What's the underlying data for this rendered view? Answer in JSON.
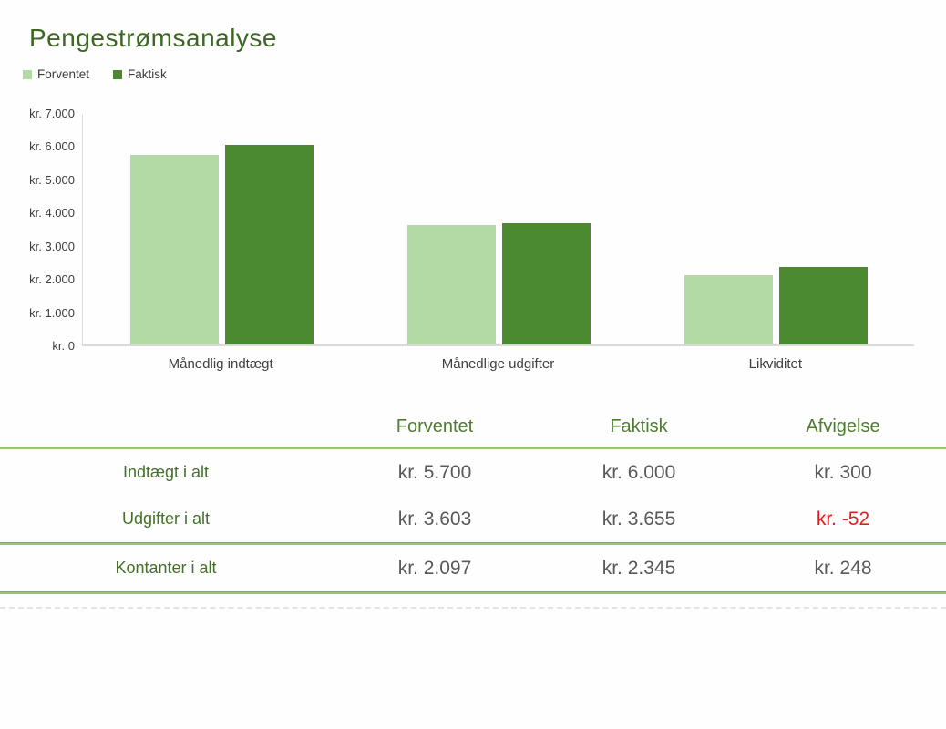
{
  "title": "Pengestrømsanalyse",
  "colors": {
    "forventet_light_green": "#b3d9a5",
    "faktisk_dark_green": "#4c8a32",
    "title_green": "#3e6626",
    "header_green": "#4e7d31",
    "row_label_green": "#44702a",
    "value_gray": "#595959",
    "negative_red": "#e81c1c",
    "divider_green": "#9cc27c",
    "axis_gray": "#d9d9d9"
  },
  "chart_data": {
    "type": "bar",
    "title": "Pengestrømsanalyse",
    "categories": [
      "Månedlig indtægt",
      "Månedlige udgifter",
      "Likviditet"
    ],
    "series": [
      {
        "name": "Forventet",
        "color": "#b3d9a5",
        "values": [
          5700,
          3603,
          2097
        ]
      },
      {
        "name": "Faktisk",
        "color": "#4c8a32",
        "values": [
          6000,
          3655,
          2345
        ]
      }
    ],
    "xlabel": "",
    "ylabel": "",
    "ylim": [
      0,
      7000
    ],
    "ytick_step": 1000,
    "ytick_labels": [
      "kr. 7.000",
      "kr. 6.000",
      "kr. 5.000",
      "kr. 4.000",
      "kr. 3.000",
      "kr. 2.000",
      "kr. 1.000",
      "kr. 0"
    ],
    "legend_position": "top-left",
    "grid": false
  },
  "table": {
    "headers": [
      "Forventet",
      "Faktisk",
      "Afvigelse"
    ],
    "rows": [
      {
        "label": "Indtægt i alt",
        "forventet": "kr. 5.700",
        "faktisk": "kr. 6.000",
        "afvigelse": "kr. 300",
        "afvigelse_color": "#595959"
      },
      {
        "label": "Udgifter i alt",
        "forventet": "kr. 3.603",
        "faktisk": "kr. 3.655",
        "afvigelse": "kr. -52",
        "afvigelse_color": "#e81c1c"
      },
      {
        "label": "Kontanter i alt",
        "forventet": "kr. 2.097",
        "faktisk": "kr. 2.345",
        "afvigelse": "kr. 248",
        "afvigelse_color": "#595959"
      }
    ]
  }
}
